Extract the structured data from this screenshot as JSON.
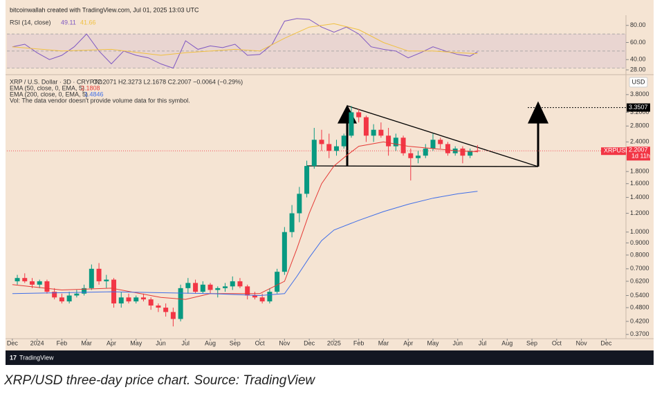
{
  "header": "bitcoinwallah created with TradingView.com, Jul 01, 2025 13:03 UTC",
  "brand": "TradingView",
  "caption": "XRP/USD three-day price chart. Source: TradingView",
  "chart_data": [
    {
      "type": "line",
      "legend": "RSI (14, close)",
      "xlim": [
        -0.22,
        24.8
      ],
      "ylim": [
        24,
        89.5
      ],
      "yticks": [
        {
          "value": 80,
          "label": "80.00"
        },
        {
          "value": 60,
          "label": "60.00"
        },
        {
          "value": 40,
          "label": "40.00"
        },
        {
          "value": 28,
          "label": "28.00"
        }
      ],
      "levels": [
        70,
        50,
        30
      ],
      "series": [
        {
          "color": "#7e57c2",
          "last_value": 49.11,
          "x": [
            0,
            0.5,
            1,
            1.5,
            2,
            2.5,
            3,
            3.5,
            4,
            4.5,
            5,
            5.5,
            6,
            6.5,
            7,
            7.5,
            8,
            8.5,
            9,
            9.5,
            10,
            10.5,
            11,
            11.5,
            12,
            12.5,
            13,
            13.5,
            14,
            14.5,
            15,
            15.5,
            16,
            16.5,
            17,
            17.5,
            18,
            18.5,
            18.8
          ],
          "values": [
            55,
            58,
            48,
            40,
            45,
            55,
            70,
            50,
            35,
            50,
            45,
            42,
            35,
            30,
            62,
            52,
            56,
            54,
            58,
            45,
            46,
            58,
            85,
            88,
            87,
            78,
            72,
            78,
            70,
            55,
            52,
            50,
            42,
            48,
            55,
            50,
            46,
            44,
            49.11
          ]
        },
        {
          "color": "#f0c040",
          "last_value": 41.66,
          "x": [
            0,
            2,
            4,
            6,
            7,
            9,
            10,
            11,
            12,
            13,
            14,
            15,
            16,
            17,
            18,
            18.8
          ],
          "values": [
            55,
            50,
            52,
            45,
            48,
            52,
            50,
            65,
            78,
            82,
            75,
            60,
            50,
            50,
            48,
            47
          ]
        }
      ]
    },
    {
      "type": "candlestick",
      "legend": [
        "XRP / U.S. Dollar · 3D · CRYPTO",
        "O2.2071 H2.3273 L2.1678 C2.2007 −0.0064 (−0.29%)",
        "Vol: The data vendor doesn't provide volume data for this symbol."
      ],
      "currency": "USD",
      "symbol_label": "XRPUSD",
      "last_price": 2.2007,
      "countdown": "1d 11h",
      "target": 3.3507,
      "log_scale": true,
      "up_color": "#089981",
      "down_color": "#f23645",
      "xlim": [
        -0.22,
        24.8
      ],
      "ylim": [
        0.355,
        4.55
      ],
      "xticks": [
        {
          "value": 0,
          "label": "Dec"
        },
        {
          "value": 1,
          "label": "2024"
        },
        {
          "value": 2,
          "label": "Feb"
        },
        {
          "value": 3,
          "label": "Mar"
        },
        {
          "value": 4,
          "label": "Apr"
        },
        {
          "value": 5,
          "label": "May"
        },
        {
          "value": 6,
          "label": "Jun"
        },
        {
          "value": 7,
          "label": "Jul"
        },
        {
          "value": 8,
          "label": "Aug"
        },
        {
          "value": 9,
          "label": "Sep"
        },
        {
          "value": 10,
          "label": "Oct"
        },
        {
          "value": 11,
          "label": "Nov"
        },
        {
          "value": 12,
          "label": "Dec"
        },
        {
          "value": 13,
          "label": "2025"
        },
        {
          "value": 14,
          "label": "Feb"
        },
        {
          "value": 15,
          "label": "Mar"
        },
        {
          "value": 16,
          "label": "Apr"
        },
        {
          "value": 17,
          "label": "May"
        },
        {
          "value": 18,
          "label": "Jun"
        },
        {
          "value": 19,
          "label": "Jul"
        },
        {
          "value": 20,
          "label": "Aug"
        },
        {
          "value": 21,
          "label": "Sep"
        },
        {
          "value": 22,
          "label": "Oct"
        },
        {
          "value": 23,
          "label": "Nov"
        },
        {
          "value": 24,
          "label": "Dec"
        }
      ],
      "yticks": [
        {
          "value": 3.8,
          "label": "3.8000"
        },
        {
          "value": 3.2,
          "label": "3.2000"
        },
        {
          "value": 2.8,
          "label": "2.8000"
        },
        {
          "value": 2.4,
          "label": "2.4000"
        },
        {
          "value": 1.8,
          "label": "1.8000"
        },
        {
          "value": 1.6,
          "label": "1.6000"
        },
        {
          "value": 1.4,
          "label": "1.4000"
        },
        {
          "value": 1.2,
          "label": "1.2000"
        },
        {
          "value": 1,
          "label": "1.0000"
        },
        {
          "value": 0.9,
          "label": "0.9000"
        },
        {
          "value": 0.8,
          "label": "0.8000"
        },
        {
          "value": 0.7,
          "label": "0.7000"
        },
        {
          "value": 0.62,
          "label": "0.6200"
        },
        {
          "value": 0.54,
          "label": "0.5400"
        },
        {
          "value": 0.48,
          "label": "0.4800"
        },
        {
          "value": 0.42,
          "label": "0.4200"
        },
        {
          "value": 0.37,
          "label": "0.3700"
        }
      ],
      "x": [
        0.2,
        0.5,
        0.8,
        1.1,
        1.4,
        1.7,
        2.0,
        2.3,
        2.6,
        2.9,
        3.2,
        3.5,
        3.8,
        4.1,
        4.4,
        4.7,
        5.0,
        5.3,
        5.6,
        5.9,
        6.2,
        6.5,
        6.8,
        7.1,
        7.4,
        7.7,
        8.0,
        8.3,
        8.6,
        8.9,
        9.2,
        9.5,
        9.8,
        10.1,
        10.4,
        10.7,
        11.0,
        11.3,
        11.6,
        11.9,
        12.2,
        12.5,
        12.8,
        13.1,
        13.4,
        13.7,
        14.0,
        14.3,
        14.6,
        14.9,
        15.2,
        15.5,
        15.8,
        16.1,
        16.4,
        16.7,
        17.0,
        17.3,
        17.6,
        17.9,
        18.2,
        18.5,
        18.8
      ],
      "open": [
        0.62,
        0.64,
        0.62,
        0.6,
        0.62,
        0.56,
        0.53,
        0.51,
        0.54,
        0.55,
        0.58,
        0.7,
        0.62,
        0.63,
        0.5,
        0.53,
        0.51,
        0.53,
        0.52,
        0.49,
        0.48,
        0.46,
        0.43,
        0.58,
        0.61,
        0.56,
        0.6,
        0.57,
        0.58,
        0.59,
        0.62,
        0.59,
        0.54,
        0.53,
        0.51,
        0.56,
        0.68,
        1.0,
        1.2,
        1.45,
        1.9,
        2.45,
        2.35,
        2.2,
        2.3,
        2.55,
        3.2,
        3.05,
        2.55,
        2.7,
        2.55,
        2.3,
        2.5,
        2.15,
        2.05,
        2.1,
        2.25,
        2.45,
        2.35,
        2.15,
        2.25,
        2.1,
        2.2071
      ],
      "high": [
        0.66,
        0.67,
        0.64,
        0.63,
        0.63,
        0.58,
        0.55,
        0.56,
        0.57,
        0.6,
        0.73,
        0.74,
        0.66,
        0.64,
        0.56,
        0.55,
        0.54,
        0.55,
        0.53,
        0.5,
        0.5,
        0.48,
        0.6,
        0.64,
        0.63,
        0.62,
        0.61,
        0.59,
        0.61,
        0.65,
        0.64,
        0.6,
        0.56,
        0.55,
        0.58,
        0.7,
        1.05,
        1.3,
        1.55,
        2.0,
        2.75,
        2.7,
        2.6,
        2.45,
        2.6,
        3.4,
        3.3,
        3.1,
        2.85,
        2.9,
        2.75,
        2.6,
        2.55,
        2.25,
        2.2,
        2.35,
        2.6,
        2.5,
        2.4,
        2.3,
        2.3,
        2.25,
        2.3273
      ],
      "low": [
        0.6,
        0.61,
        0.58,
        0.58,
        0.55,
        0.52,
        0.5,
        0.5,
        0.53,
        0.54,
        0.57,
        0.6,
        0.58,
        0.48,
        0.48,
        0.5,
        0.5,
        0.51,
        0.47,
        0.46,
        0.44,
        0.4,
        0.42,
        0.55,
        0.55,
        0.55,
        0.55,
        0.53,
        0.56,
        0.57,
        0.58,
        0.52,
        0.52,
        0.5,
        0.5,
        0.55,
        0.66,
        0.95,
        1.1,
        1.4,
        1.85,
        2.2,
        2.05,
        2.1,
        2.25,
        2.5,
        2.9,
        2.4,
        2.4,
        2.5,
        2.1,
        2.2,
        2.1,
        1.65,
        1.95,
        2.05,
        2.2,
        2.25,
        2.1,
        2.1,
        1.95,
        2.05,
        2.1678
      ],
      "close": [
        0.64,
        0.62,
        0.6,
        0.62,
        0.56,
        0.53,
        0.51,
        0.54,
        0.55,
        0.58,
        0.7,
        0.62,
        0.63,
        0.5,
        0.53,
        0.51,
        0.53,
        0.52,
        0.49,
        0.48,
        0.46,
        0.43,
        0.58,
        0.61,
        0.56,
        0.6,
        0.57,
        0.58,
        0.59,
        0.62,
        0.59,
        0.54,
        0.53,
        0.51,
        0.56,
        0.68,
        1.0,
        1.2,
        1.45,
        1.9,
        2.45,
        2.35,
        2.2,
        2.3,
        2.55,
        3.2,
        3.05,
        2.55,
        2.7,
        2.55,
        2.3,
        2.5,
        2.15,
        2.05,
        2.1,
        2.25,
        2.45,
        2.35,
        2.15,
        2.25,
        2.1,
        2.2,
        2.2007
      ],
      "series": [
        {
          "name": "EMA (50, close, 0, EMA, 5)",
          "color": "#e53935",
          "last_value": 2.1808,
          "x": [
            0,
            2,
            4,
            6,
            7,
            8,
            10,
            11,
            11.5,
            12,
            12.5,
            13,
            13.5,
            14,
            15,
            16,
            17,
            18,
            18.8
          ],
          "values": [
            0.6,
            0.57,
            0.58,
            0.53,
            0.52,
            0.55,
            0.55,
            0.62,
            0.85,
            1.2,
            1.6,
            1.9,
            2.1,
            2.3,
            2.4,
            2.3,
            2.25,
            2.2,
            2.1808
          ]
        },
        {
          "name": "EMA (200, close, 0, EMA, 5)",
          "color": "#3f6ee8",
          "last_value": 1.4846,
          "x": [
            0,
            4,
            8,
            10,
            11,
            11.5,
            12,
            12.5,
            13,
            14,
            15,
            16,
            17,
            18,
            18.8
          ],
          "values": [
            0.55,
            0.56,
            0.55,
            0.54,
            0.55,
            0.65,
            0.78,
            0.92,
            1.02,
            1.12,
            1.22,
            1.31,
            1.39,
            1.45,
            1.4846
          ]
        }
      ]
    }
  ]
}
